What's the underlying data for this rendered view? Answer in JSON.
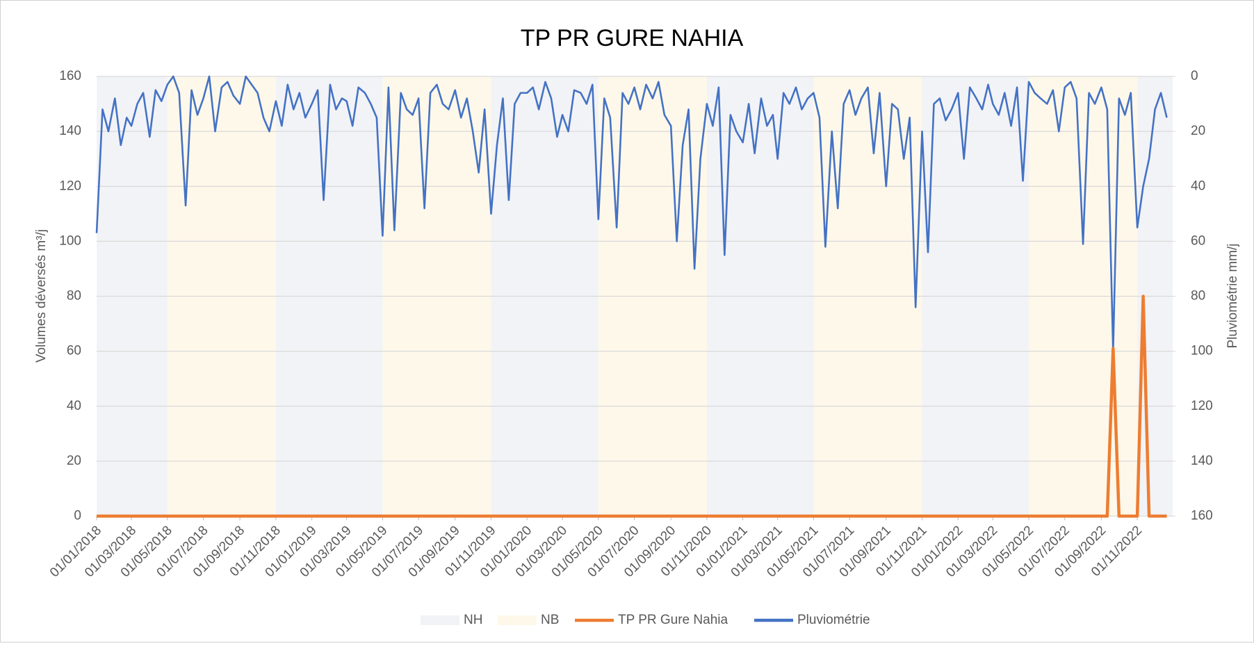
{
  "chart_data": {
    "type": "line",
    "title": "TP PR GURE NAHIA",
    "ylabel": "Volumes déversés m³/j",
    "y2label": "Pluviométrie mm/j",
    "xlim": [
      "01/01/2018",
      "31/12/2022"
    ],
    "xticks": [
      "01/01/2018",
      "01/03/2018",
      "01/05/2018",
      "01/07/2018",
      "01/09/2018",
      "01/11/2018",
      "01/01/2019",
      "01/03/2019",
      "01/05/2019",
      "01/07/2019",
      "01/09/2019",
      "01/11/2019",
      "01/01/2020",
      "01/03/2020",
      "01/05/2020",
      "01/07/2020",
      "01/09/2020",
      "01/11/2020",
      "01/01/2021",
      "01/03/2021",
      "01/05/2021",
      "01/07/2021",
      "01/09/2021",
      "01/11/2021",
      "01/01/2022",
      "01/03/2022",
      "01/05/2022",
      "01/07/2022",
      "01/09/2022",
      "01/11/2022"
    ],
    "ylim": [
      0,
      160
    ],
    "yticks": [
      0,
      20,
      40,
      60,
      80,
      100,
      120,
      140,
      160
    ],
    "y2lim": [
      160,
      0
    ],
    "y2ticks": [
      0,
      20,
      40,
      60,
      80,
      100,
      120,
      140,
      160
    ],
    "grid": true,
    "legend": "bottom",
    "x": [
      "01/01/2018",
      "11/01/2018",
      "21/01/2018",
      "01/02/2018",
      "11/02/2018",
      "21/02/2018",
      "01/03/2018",
      "11/03/2018",
      "21/03/2018",
      "01/04/2018",
      "11/04/2018",
      "21/04/2018",
      "01/05/2018",
      "11/05/2018",
      "21/05/2018",
      "01/06/2018",
      "11/06/2018",
      "21/06/2018",
      "01/07/2018",
      "11/07/2018",
      "21/07/2018",
      "01/08/2018",
      "11/08/2018",
      "21/08/2018",
      "01/09/2018",
      "11/09/2018",
      "21/09/2018",
      "01/10/2018",
      "11/10/2018",
      "21/10/2018",
      "01/11/2018",
      "11/11/2018",
      "21/11/2018",
      "01/12/2018",
      "11/12/2018",
      "21/12/2018",
      "01/01/2019",
      "11/01/2019",
      "21/01/2019",
      "01/02/2019",
      "11/02/2019",
      "21/02/2019",
      "01/03/2019",
      "11/03/2019",
      "21/03/2019",
      "01/04/2019",
      "11/04/2019",
      "21/04/2019",
      "01/05/2019",
      "11/05/2019",
      "21/05/2019",
      "01/06/2019",
      "11/06/2019",
      "21/06/2019",
      "01/07/2019",
      "11/07/2019",
      "21/07/2019",
      "01/08/2019",
      "11/08/2019",
      "21/08/2019",
      "01/09/2019",
      "11/09/2019",
      "21/09/2019",
      "01/10/2019",
      "11/10/2019",
      "21/10/2019",
      "01/11/2019",
      "11/11/2019",
      "21/11/2019",
      "01/12/2019",
      "11/12/2019",
      "21/12/2019",
      "01/01/2020",
      "11/01/2020",
      "21/01/2020",
      "01/02/2020",
      "11/02/2020",
      "21/02/2020",
      "01/03/2020",
      "11/03/2020",
      "21/03/2020",
      "01/04/2020",
      "11/04/2020",
      "21/04/2020",
      "01/05/2020",
      "11/05/2020",
      "21/05/2020",
      "01/06/2020",
      "11/06/2020",
      "21/06/2020",
      "01/07/2020",
      "11/07/2020",
      "21/07/2020",
      "01/08/2020",
      "11/08/2020",
      "21/08/2020",
      "01/09/2020",
      "11/09/2020",
      "21/09/2020",
      "01/10/2020",
      "11/10/2020",
      "21/10/2020",
      "01/11/2020",
      "11/11/2020",
      "21/11/2020",
      "01/12/2020",
      "11/12/2020",
      "21/12/2020",
      "01/01/2021",
      "11/01/2021",
      "21/01/2021",
      "01/02/2021",
      "11/02/2021",
      "21/02/2021",
      "01/03/2021",
      "11/03/2021",
      "21/03/2021",
      "01/04/2021",
      "11/04/2021",
      "21/04/2021",
      "01/05/2021",
      "11/05/2021",
      "21/05/2021",
      "01/06/2021",
      "11/06/2021",
      "21/06/2021",
      "01/07/2021",
      "11/07/2021",
      "21/07/2021",
      "01/08/2021",
      "11/08/2021",
      "21/08/2021",
      "01/09/2021",
      "11/09/2021",
      "21/09/2021",
      "01/10/2021",
      "11/10/2021",
      "21/10/2021",
      "01/11/2021",
      "11/11/2021",
      "21/11/2021",
      "01/12/2021",
      "11/12/2021",
      "21/12/2021",
      "01/01/2022",
      "11/01/2022",
      "21/01/2022",
      "01/02/2022",
      "11/02/2022",
      "21/02/2022",
      "01/03/2022",
      "11/03/2022",
      "21/03/2022",
      "01/04/2022",
      "11/04/2022",
      "21/04/2022",
      "01/05/2022",
      "11/05/2022",
      "21/05/2022",
      "01/06/2022",
      "11/06/2022",
      "21/06/2022",
      "01/07/2022",
      "11/07/2022",
      "21/07/2022",
      "01/08/2022",
      "11/08/2022",
      "21/08/2022",
      "01/09/2022",
      "11/09/2022",
      "21/09/2022",
      "01/10/2022",
      "11/10/2022",
      "21/10/2022",
      "01/11/2022",
      "11/11/2022",
      "21/11/2022",
      "01/12/2022",
      "11/12/2022",
      "21/12/2022"
    ],
    "series": [
      {
        "name": "NH",
        "type": "band",
        "color": "#f2f3f6",
        "periods": [
          [
            "01/01/2018",
            "01/05/2018"
          ],
          [
            "01/11/2018",
            "01/05/2019"
          ],
          [
            "01/11/2019",
            "01/05/2020"
          ],
          [
            "01/11/2020",
            "01/05/2021"
          ],
          [
            "01/11/2021",
            "01/05/2022"
          ],
          [
            "01/11/2022",
            "31/12/2022"
          ]
        ]
      },
      {
        "name": "NB",
        "type": "band",
        "color": "#fef8ea",
        "periods": [
          [
            "01/05/2018",
            "01/11/2018"
          ],
          [
            "01/05/2019",
            "01/11/2019"
          ],
          [
            "01/05/2020",
            "01/11/2020"
          ],
          [
            "01/05/2021",
            "01/11/2021"
          ],
          [
            "01/05/2022",
            "01/11/2022"
          ]
        ]
      },
      {
        "name": "TP PR Gure Nahia",
        "color": "#ed7d31",
        "values": [
          0,
          0,
          0,
          0,
          0,
          0,
          0,
          0,
          0,
          0,
          0,
          0,
          0,
          0,
          0,
          0,
          0,
          0,
          0,
          0,
          0,
          0,
          0,
          0,
          0,
          0,
          0,
          0,
          0,
          0,
          0,
          0,
          0,
          0,
          0,
          0,
          0,
          0,
          0,
          0,
          0,
          0,
          0,
          0,
          0,
          0,
          0,
          0,
          0,
          0,
          0,
          0,
          0,
          0,
          0,
          0,
          0,
          0,
          0,
          0,
          0,
          0,
          0,
          0,
          0,
          0,
          0,
          0,
          0,
          0,
          0,
          0,
          0,
          0,
          0,
          0,
          0,
          0,
          0,
          0,
          0,
          0,
          0,
          0,
          0,
          0,
          0,
          0,
          0,
          0,
          0,
          0,
          0,
          0,
          0,
          0,
          0,
          0,
          0,
          0,
          0,
          0,
          0,
          0,
          0,
          0,
          0,
          0,
          0,
          0,
          0,
          0,
          0,
          0,
          0,
          0,
          0,
          0,
          0,
          0,
          0,
          0,
          0,
          0,
          0,
          0,
          0,
          0,
          0,
          0,
          0,
          0,
          0,
          0,
          0,
          0,
          0,
          0,
          0,
          0,
          0,
          0,
          0,
          0,
          0,
          0,
          0,
          0,
          0,
          0,
          0,
          0,
          0,
          0,
          0,
          0,
          0,
          0,
          0,
          0,
          0,
          0,
          0,
          0,
          0,
          0,
          0,
          0,
          0,
          0,
          61,
          0,
          0,
          0,
          0,
          80,
          0,
          0,
          0,
          0
        ]
      },
      {
        "name": "Pluviométrie",
        "color": "#4472c4",
        "axis": "y2",
        "values": [
          57,
          12,
          20,
          8,
          25,
          15,
          18,
          10,
          6,
          22,
          5,
          9,
          3,
          0,
          6,
          47,
          5,
          14,
          8,
          0,
          20,
          4,
          2,
          7,
          10,
          0,
          3,
          6,
          15,
          20,
          9,
          18,
          3,
          12,
          6,
          15,
          10,
          5,
          45,
          3,
          12,
          8,
          9,
          18,
          4,
          6,
          10,
          15,
          58,
          4,
          56,
          6,
          12,
          14,
          8,
          48,
          6,
          3,
          10,
          12,
          5,
          15,
          8,
          20,
          35,
          12,
          50,
          25,
          8,
          45,
          10,
          6,
          6,
          4,
          12,
          2,
          8,
          22,
          14,
          20,
          5,
          6,
          10,
          3,
          52,
          8,
          15,
          55,
          6,
          10,
          4,
          12,
          3,
          8,
          2,
          14,
          18,
          60,
          25,
          12,
          70,
          30,
          10,
          18,
          4,
          65,
          14,
          20,
          24,
          10,
          28,
          8,
          18,
          14,
          30,
          6,
          10,
          4,
          12,
          8,
          6,
          15,
          62,
          20,
          48,
          10,
          5,
          14,
          8,
          4,
          28,
          6,
          40,
          10,
          12,
          30,
          15,
          84,
          20,
          64,
          10,
          8,
          16,
          12,
          6,
          30,
          4,
          8,
          12,
          3,
          10,
          14,
          6,
          18,
          4,
          38,
          2,
          6,
          8,
          10,
          5,
          20,
          4,
          2,
          8,
          61,
          6,
          10,
          4,
          12,
          100,
          8,
          14,
          6,
          55,
          40,
          30,
          12,
          6,
          15
        ]
      }
    ]
  }
}
